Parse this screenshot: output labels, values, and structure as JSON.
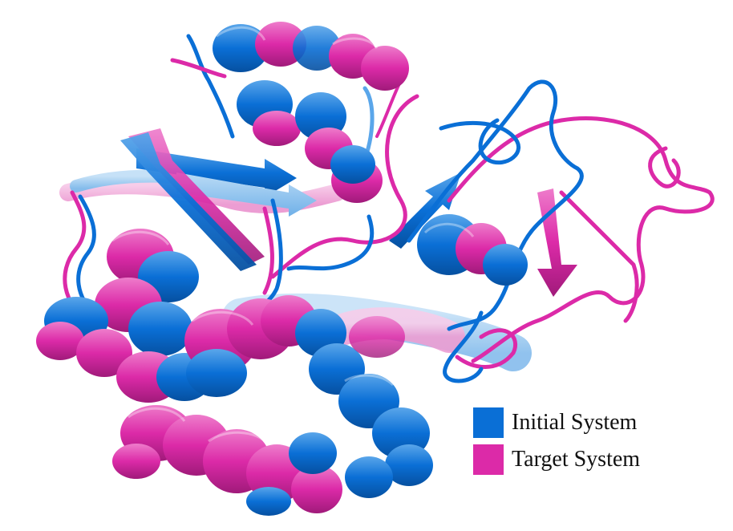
{
  "colors": {
    "initial": "#0a6fd6",
    "initial_light": "#5aa6ea",
    "initial_dark": "#0650a0",
    "target": "#dc2aa8",
    "target_light": "#ee7ccb",
    "target_dark": "#a01a7a"
  },
  "legend": {
    "items": [
      {
        "label": "Initial System",
        "color": "#0a6fd6"
      },
      {
        "label": "Target System",
        "color": "#dc2aa8"
      }
    ]
  }
}
